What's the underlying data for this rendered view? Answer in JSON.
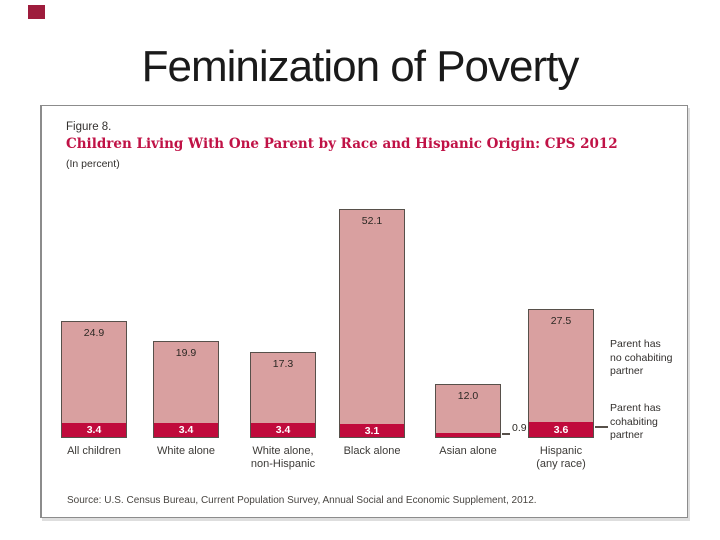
{
  "slide": {
    "title": "Feminization of Poverty"
  },
  "figure": {
    "label": "Figure 8.",
    "title": "Children Living With One Parent by Race and Hispanic Origin: CPS 2012",
    "subtitle": "(In percent)",
    "source": "Source: U.S. Census Bureau, Current Population Survey, Annual Social and Economic Supplement, 2012."
  },
  "chart_data": {
    "type": "bar",
    "stacked": true,
    "title": "Children Living With One Parent by Race and Hispanic Origin: CPS 2012",
    "xlabel": "",
    "ylabel": "Percent",
    "ylim": [
      0,
      60
    ],
    "grid": false,
    "legend_position": "right",
    "categories": [
      "All children",
      "White alone",
      "White alone,\nnon-Hispanic",
      "Black alone",
      "Asian alone",
      "Hispanic\n(any race)"
    ],
    "series": [
      {
        "name": "Parent has no cohabiting partner",
        "values": [
          24.9,
          19.9,
          17.3,
          52.1,
          12.0,
          27.5
        ],
        "color": "#d9a0a0"
      },
      {
        "name": "Parent has cohabiting partner",
        "values": [
          3.4,
          3.4,
          3.4,
          3.1,
          0.9,
          3.6
        ],
        "color": "#c00b3c"
      }
    ],
    "legend": [
      "Parent has\nno cohabiting\npartner",
      "Parent has\ncohabiting\npartner"
    ]
  },
  "colors": {
    "bar_pink": "#d9a0a0",
    "bar_crimson": "#c00b3c",
    "figure_title_color": "#c01246",
    "bar_outline": "#57504a",
    "accent_mark": "#9e1c3c"
  }
}
